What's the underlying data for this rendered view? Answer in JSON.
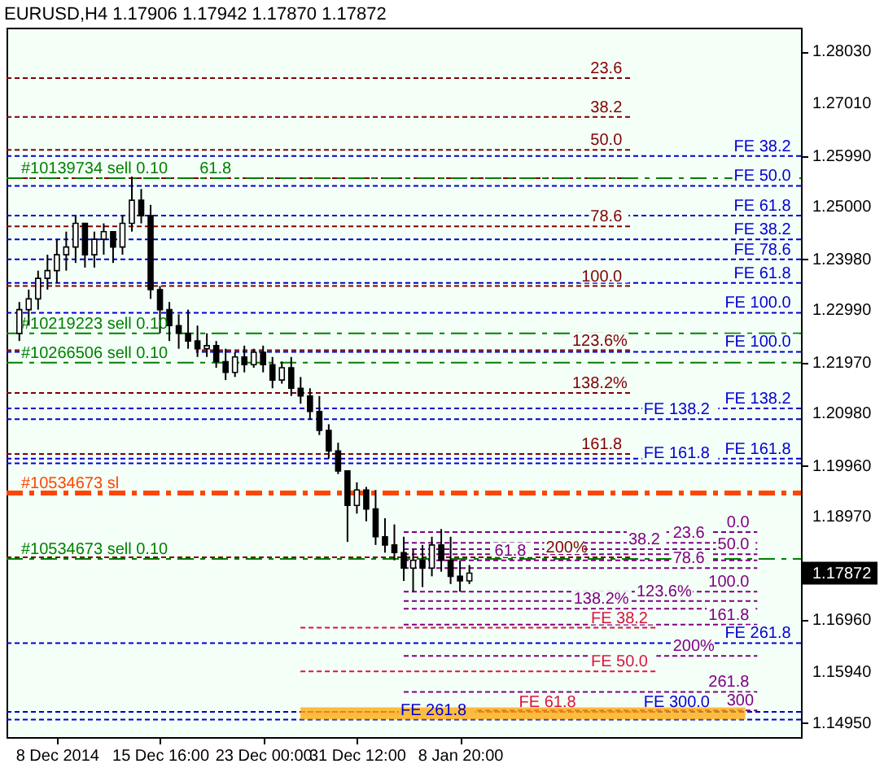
{
  "chart_data": {
    "type": "candlestick",
    "title": "EURUSD,H4  1.17906 1.17942 1.17870 1.17872",
    "categories": [
      null,
      null,
      null,
      null,
      "8 Dec 2014",
      null,
      null,
      null,
      null,
      null,
      null,
      null,
      null,
      null,
      null,
      "15 Dec 16:00",
      null,
      null,
      null,
      null,
      null,
      null,
      null,
      null,
      null,
      null,
      "23 Dec 00:00",
      null,
      null,
      null,
      null,
      null,
      null,
      null,
      null,
      null,
      "31 Dec 12:00",
      null,
      null,
      null,
      null,
      null,
      null,
      null,
      null,
      null,
      null,
      "8 Jan 20:00",
      null,
      null,
      null,
      null,
      null,
      null,
      null,
      null,
      null,
      null,
      null,
      null,
      null,
      null,
      null,
      null,
      null,
      null,
      null,
      null,
      null,
      null,
      null,
      null,
      null,
      null,
      null,
      null,
      null,
      null,
      null,
      null,
      null,
      null,
      null
    ],
    "ohlc": [
      [
        1.2254,
        1.2315,
        1.2239,
        1.23
      ],
      [
        1.23,
        1.2339,
        1.2269,
        1.2321
      ],
      [
        1.2321,
        1.2376,
        1.23,
        1.2361
      ],
      [
        1.2361,
        1.2407,
        1.2339,
        1.2376
      ],
      [
        1.2376,
        1.2437,
        1.2352,
        1.2407
      ],
      [
        1.2407,
        1.2452,
        1.2376,
        1.2422
      ],
      [
        1.2422,
        1.2483,
        1.2391,
        1.2468
      ],
      [
        1.2468,
        1.2468,
        1.2382,
        1.2407
      ],
      [
        1.2407,
        1.2452,
        1.2382,
        1.2437
      ],
      [
        1.2437,
        1.2468,
        1.2407,
        1.2452
      ],
      [
        1.2452,
        1.2452,
        1.2391,
        1.2422
      ],
      [
        1.2422,
        1.2483,
        1.2407,
        1.2468
      ],
      [
        1.2468,
        1.2559,
        1.2452,
        1.2513
      ],
      [
        1.2513,
        1.2535,
        1.2468,
        1.2483
      ],
      [
        1.2483,
        1.2504,
        1.2321,
        1.2339
      ],
      [
        1.2339,
        1.2346,
        1.2254,
        1.23
      ],
      [
        1.23,
        1.2315,
        1.2239,
        1.2269
      ],
      [
        1.2269,
        1.2291,
        1.2224,
        1.2254
      ],
      [
        1.2254,
        1.23,
        1.2224,
        1.2239
      ],
      [
        1.2239,
        1.2269,
        1.2208,
        1.2224
      ],
      [
        1.2224,
        1.2254,
        1.2208,
        1.223
      ],
      [
        1.223,
        1.2239,
        1.2187,
        1.2199
      ],
      [
        1.2199,
        1.2224,
        1.2163,
        1.2178
      ],
      [
        1.2178,
        1.2217,
        1.2169,
        1.2208
      ],
      [
        1.2208,
        1.223,
        1.2178,
        1.2193
      ],
      [
        1.2193,
        1.2224,
        1.2187,
        1.2217
      ],
      [
        1.2217,
        1.223,
        1.2178,
        1.2193
      ],
      [
        1.2193,
        1.2208,
        1.2147,
        1.2163
      ],
      [
        1.2163,
        1.2199,
        1.2156,
        1.2187
      ],
      [
        1.2187,
        1.2208,
        1.2132,
        1.2147
      ],
      [
        1.2147,
        1.2169,
        1.2117,
        1.2132
      ],
      [
        1.2132,
        1.2147,
        1.2086,
        1.2102
      ],
      [
        1.2102,
        1.2132,
        1.2056,
        1.2065
      ],
      [
        1.2065,
        1.2077,
        1.201,
        1.2025
      ],
      [
        1.2025,
        1.2041,
        1.198,
        1.1986
      ],
      [
        1.1986,
        1.1986,
        1.1848,
        1.1919
      ],
      [
        1.1919,
        1.1964,
        1.1903,
        1.1949
      ],
      [
        1.1949,
        1.1955,
        1.1888,
        1.1912
      ],
      [
        1.1912,
        1.1949,
        1.1842,
        1.1858
      ],
      [
        1.1858,
        1.1894,
        1.1827,
        1.1842
      ],
      [
        1.1842,
        1.1882,
        1.1812,
        1.1827
      ],
      [
        1.1827,
        1.1858,
        1.1772,
        1.1797
      ],
      [
        1.1797,
        1.1833,
        1.1751,
        1.1812
      ],
      [
        1.1812,
        1.1842,
        1.176,
        1.1797
      ],
      [
        1.1797,
        1.1858,
        1.1781,
        1.1842
      ],
      [
        1.1842,
        1.1873,
        1.179,
        1.1812
      ],
      [
        1.1812,
        1.1858,
        1.1766,
        1.1781
      ],
      [
        1.1781,
        1.1812,
        1.1751,
        1.1772
      ],
      [
        1.1772,
        1.1803,
        1.1766,
        1.1787
      ],
      null,
      null,
      null,
      null,
      null,
      null,
      null,
      null,
      null,
      null,
      null,
      null,
      null,
      null,
      null,
      null,
      null,
      null,
      null,
      null,
      null,
      null,
      null,
      null,
      null,
      null,
      null,
      null,
      null,
      null,
      null,
      null,
      null,
      null
    ],
    "color": "#000000",
    "ylim": [
      1.1468,
      1.2849
    ],
    "yticks": [
      {
        "value": 1.2803,
        "label": "1.28030"
      },
      {
        "value": 1.2701,
        "label": "1.27010"
      },
      {
        "value": 1.2599,
        "label": "1.25990"
      },
      {
        "value": 1.25,
        "label": "1.25000"
      },
      {
        "value": 1.2398,
        "label": "1.23980"
      },
      {
        "value": 1.2299,
        "label": "1.22990"
      },
      {
        "value": 1.2197,
        "label": "1.21970"
      },
      {
        "value": 1.2098,
        "label": "1.20980"
      },
      {
        "value": 1.1996,
        "label": "1.19960"
      },
      {
        "value": 1.1897,
        "label": "1.18970"
      },
      {
        "value": 1.1696,
        "label": "1.16960"
      },
      {
        "value": 1.1594,
        "label": "1.15940"
      },
      {
        "value": 1.1495,
        "label": "1.14950"
      }
    ],
    "grid": false,
    "annotations": [
      "1.17872",
      {
        "text": "23.6",
        "y": 1.2751
      },
      {
        "text": "38.2",
        "y": 1.2675
      },
      {
        "text": "50.0",
        "y": 1.2611
      },
      {
        "text": "61.8",
        "y": 1.2556
      },
      {
        "text": "78.6",
        "y": 1.2462
      },
      {
        "text": "100.0",
        "y": 1.2346
      },
      {
        "text": "123.6%",
        "y": 1.2221
      },
      {
        "text": "138.2%",
        "y": 1.2138
      },
      {
        "text": "161.8",
        "y": 1.2019
      },
      {
        "text": "200%",
        "y": 1.1818
      },
      {
        "text": "0.0",
        "y": 1.1867
      },
      {
        "text": "23.6",
        "y": 1.1846
      },
      {
        "text": "38.2",
        "y": 1.1834
      },
      {
        "text": "50.0",
        "y": 1.1824
      },
      {
        "text": "61.8",
        "y": 1.1812
      },
      {
        "text": "78.6",
        "y": 1.1797
      },
      {
        "text": "100.0",
        "y": 1.1751
      },
      {
        "text": "123.6%",
        "y": 1.1733
      },
      {
        "text": "138.2%",
        "y": 1.1718
      },
      {
        "text": "161.8",
        "y": 1.1687
      },
      {
        "text": "200%",
        "y": 1.1626
      },
      {
        "text": "261.8",
        "y": 1.1556
      },
      {
        "text": "300",
        "y": 1.152
      }
    ],
    "bands": [
      {
        "axis": "y",
        "from": 1.1502,
        "to": 1.1526,
        "color": "#ffa500"
      }
    ],
    "ref_lines": [
      {
        "axis": "y",
        "value": 1.2751,
        "color": "#800000",
        "line_style": "dotted"
      },
      {
        "axis": "y",
        "value": 1.2675,
        "color": "#800000",
        "line_style": "dotted"
      },
      {
        "axis": "y",
        "value": 1.2611,
        "color": "#800000",
        "line_style": "dotted"
      },
      {
        "axis": "y",
        "value": 1.2556,
        "color": "#800000",
        "line_style": "dotted"
      },
      {
        "axis": "y",
        "value": 1.2462,
        "color": "#800000",
        "line_style": "dotted"
      },
      {
        "axis": "y",
        "value": 1.2346,
        "color": "#800000",
        "line_style": "dotted"
      },
      {
        "axis": "y",
        "value": 1.2221,
        "color": "#800000",
        "line_style": "dotted"
      },
      {
        "axis": "y",
        "value": 1.2138,
        "color": "#800000",
        "line_style": "dotted"
      },
      {
        "axis": "y",
        "value": 1.2019,
        "color": "#800000",
        "line_style": "dotted"
      },
      {
        "axis": "y",
        "value": 1.1818,
        "color": "#800000",
        "line_style": "dotted"
      },
      {
        "axis": "y",
        "value": 1.2599,
        "label": "FE 38.2",
        "color": "#0000cd",
        "line_style": "dotted"
      },
      {
        "axis": "y",
        "value": 1.2541,
        "label": "FE 50.0",
        "color": "#0000cd",
        "line_style": "dotted"
      },
      {
        "axis": "y",
        "value": 1.2483,
        "label": "FE 61.8",
        "color": "#0000cd",
        "line_style": "dotted"
      },
      {
        "axis": "y",
        "value": 1.2437,
        "label": "FE 38.2",
        "color": "#0000cd",
        "line_style": "dotted"
      },
      {
        "axis": "y",
        "value": 1.2398,
        "label": "FE 78.6",
        "color": "#0000cd",
        "line_style": "dotted"
      },
      {
        "axis": "y",
        "value": 1.2352,
        "label": "FE 61.8",
        "color": "#0000cd",
        "line_style": "dotted"
      },
      {
        "axis": "y",
        "value": 1.2294,
        "label": "FE 100.0",
        "color": "#0000cd",
        "line_style": "dotted"
      },
      {
        "axis": "y",
        "value": 1.2218,
        "label": "FE 100.0",
        "color": "#0000cd",
        "line_style": "dotted"
      },
      {
        "axis": "y",
        "value": 1.2108,
        "label": "FE 138.2",
        "color": "#0000cd",
        "line_style": "dotted"
      },
      {
        "axis": "y",
        "value": 1.2087,
        "label": "FE 138.2",
        "color": "#0000cd",
        "line_style": "dotted"
      },
      {
        "axis": "y",
        "value": 1.201,
        "label": "FE 161.8",
        "color": "#0000cd",
        "line_style": "dotted"
      },
      {
        "axis": "y",
        "value": 1.2001,
        "label": "FE 161.8",
        "color": "#0000cd",
        "line_style": "dotted"
      },
      {
        "axis": "y",
        "value": 1.1651,
        "label": "FE 261.8",
        "color": "#0000cd",
        "line_style": "dotted"
      },
      {
        "axis": "y",
        "value": 1.1517,
        "label": "FE 300.0",
        "color": "#0000cd",
        "line_style": "dotted"
      },
      {
        "axis": "y",
        "value": 1.1502,
        "label": "FE 261.8",
        "color": "#0000cd",
        "line_style": "dotted"
      },
      {
        "axis": "y",
        "value": 1.2556,
        "label": "#10139734 sell 0.10",
        "color": "#008000",
        "line_style": "dashed"
      },
      {
        "axis": "y",
        "value": 1.2254,
        "label": "#10219223 sell 0.10",
        "color": "#008000",
        "line_style": "dashed"
      },
      {
        "axis": "y",
        "value": 1.2197,
        "label": "#10266506 sell 0.10",
        "color": "#008000",
        "line_style": "dashed"
      },
      {
        "axis": "y",
        "value": 1.1943,
        "label": "#10534673 sl",
        "color": "#ff4500",
        "line_style": "dashed"
      },
      {
        "axis": "y",
        "value": 1.1815,
        "label": "#10534673 sell 0.10",
        "color": "#008000",
        "line_style": "dashed"
      },
      {
        "axis": "y",
        "value": 1.1867,
        "color": "#800080",
        "line_style": "dotted"
      },
      {
        "axis": "y",
        "value": 1.1846,
        "color": "#800080",
        "line_style": "dotted"
      },
      {
        "axis": "y",
        "value": 1.1834,
        "color": "#800080",
        "line_style": "dotted"
      },
      {
        "axis": "y",
        "value": 1.1824,
        "color": "#800080",
        "line_style": "dotted"
      },
      {
        "axis": "y",
        "value": 1.1812,
        "color": "#800080",
        "line_style": "dotted"
      },
      {
        "axis": "y",
        "value": 1.1797,
        "color": "#800080",
        "line_style": "dotted"
      },
      {
        "axis": "y",
        "value": 1.1751,
        "color": "#800080",
        "line_style": "dotted"
      },
      {
        "axis": "y",
        "value": 1.1733,
        "color": "#800080",
        "line_style": "dotted"
      },
      {
        "axis": "y",
        "value": 1.1718,
        "color": "#800080",
        "line_style": "dotted"
      },
      {
        "axis": "y",
        "value": 1.1687,
        "color": "#800080",
        "line_style": "dotted"
      },
      {
        "axis": "y",
        "value": 1.1626,
        "color": "#800080",
        "line_style": "dotted"
      },
      {
        "axis": "y",
        "value": 1.1556,
        "color": "#800080",
        "line_style": "dotted"
      },
      {
        "axis": "y",
        "value": 1.152,
        "color": "#800080",
        "line_style": "dotted"
      },
      {
        "axis": "y",
        "value": 1.1681,
        "label": "FE 38.2",
        "color": "#dc143c",
        "line_style": "dotted"
      },
      {
        "axis": "y",
        "value": 1.1596,
        "label": "FE 50.0",
        "color": "#dc143c",
        "line_style": "dotted"
      },
      {
        "axis": "y",
        "value": 1.1517,
        "label": "FE 61.8",
        "color": "#dc143c",
        "line_style": "dotted"
      }
    ]
  }
}
